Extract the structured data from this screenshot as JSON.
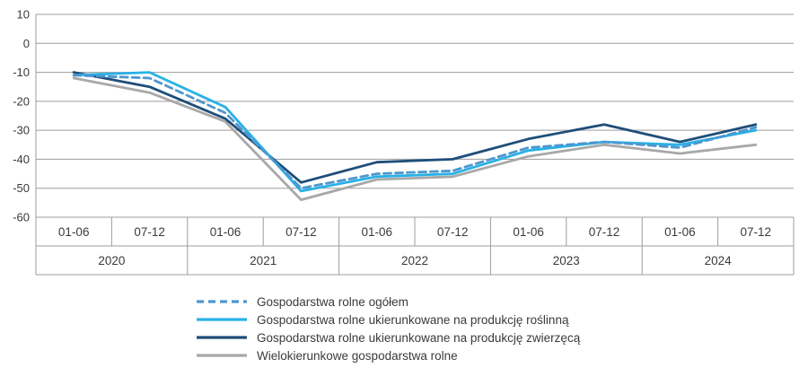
{
  "chart_data": {
    "type": "line",
    "x_periods": [
      "01-06",
      "07-12",
      "01-06",
      "07-12",
      "01-06",
      "07-12",
      "01-06",
      "07-12",
      "01-06",
      "07-12"
    ],
    "years": [
      "2020",
      "2021",
      "2022",
      "2023",
      "2024"
    ],
    "ylim": [
      -60,
      10
    ],
    "ytick_step": 10,
    "yticks": [
      10,
      0,
      -10,
      -20,
      -30,
      -40,
      -50,
      -60
    ],
    "grid": "horizontal",
    "legend_position": "bottom",
    "colors": {
      "grid": "#9c9c9c",
      "text": "#3a3a3a"
    },
    "series": [
      {
        "name": "Gospodarstwa rolne ogółem",
        "color": "#4e96ce",
        "dash": true,
        "values": [
          -11,
          -12,
          -24,
          -50,
          -45,
          -44,
          -36,
          -34,
          -36,
          -29
        ]
      },
      {
        "name": "Gospodarstwa rolne ukierunkowane na produkcję roślinną",
        "color": "#29b1e6",
        "dash": false,
        "values": [
          -11,
          -10,
          -22,
          -51,
          -46,
          -45,
          -37,
          -34,
          -35,
          -30
        ]
      },
      {
        "name": "Gospodarstwa rolne ukierunkowane na produkcję zwierzęcą",
        "color": "#1f4e79",
        "dash": false,
        "values": [
          -10,
          -15,
          -26,
          -48,
          -41,
          -40,
          -33,
          -28,
          -34,
          -28
        ]
      },
      {
        "name": "Wielokierunkowe gospodarstwa rolne",
        "color": "#a8a8a8",
        "dash": false,
        "values": [
          -12,
          -17,
          -27,
          -54,
          -47,
          -46,
          -39,
          -35,
          -38,
          -35
        ]
      }
    ]
  }
}
